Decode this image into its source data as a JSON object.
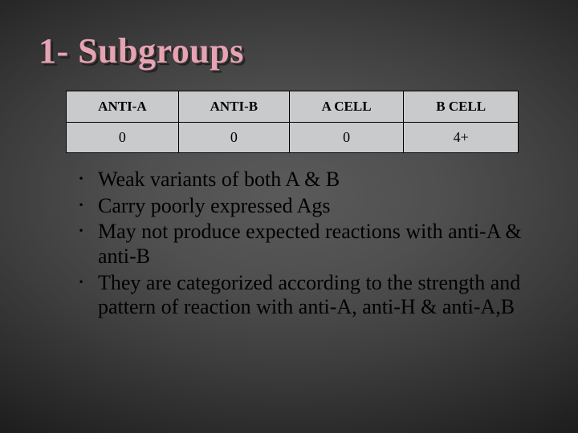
{
  "slide": {
    "title": "1- Subgroups",
    "table": {
      "columns": [
        "ANTI-A",
        "ANTI-B",
        "A CELL",
        "B CELL"
      ],
      "rows": [
        [
          "0",
          "0",
          "0",
          "4+"
        ]
      ],
      "border_color": "#000000",
      "cell_bg": "#c9cacb",
      "header_fontsize": 17,
      "body_fontsize": 18
    },
    "bullets": [
      "Weak variants of both A & B",
      "Carry poorly expressed Ags",
      "May not produce expected reactions with anti-A & anti-B",
      "They are categorized according to the strength and pattern of reaction with anti-A, anti-H & anti-A,B"
    ],
    "style": {
      "title_color": "#e7a3b3",
      "title_fontsize": 44,
      "bullet_fontsize": 26,
      "background_gradient": {
        "type": "radial",
        "center_color": "#5a5a5a",
        "edge_color": "#1a1a1a"
      },
      "text_color": "#000000"
    }
  }
}
